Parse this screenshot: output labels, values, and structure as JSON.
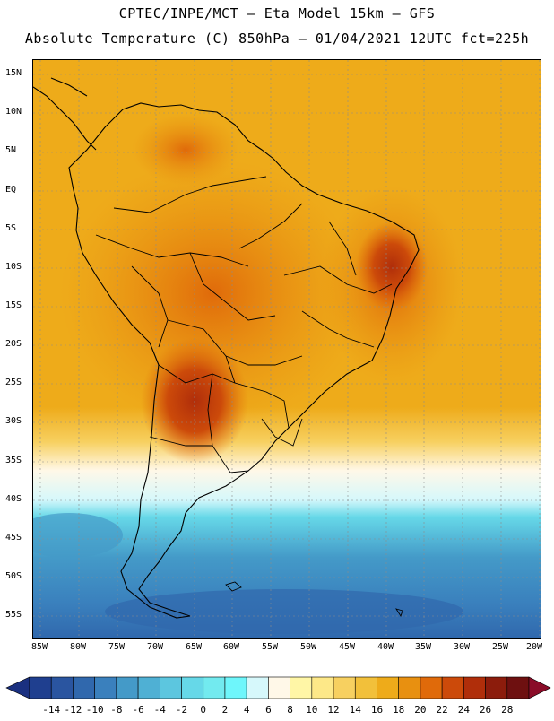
{
  "title_line1": "CPTEC/INPE/MCT –  Eta Model 15km – GFS",
  "title_line2": "Absolute Temperature (C) 850hPa – 01/04/2021 12UTC fct=225h",
  "lat_labels": [
    "15N",
    "10N",
    "5N",
    "EQ",
    "5S",
    "10S",
    "15S",
    "20S",
    "25S",
    "30S",
    "35S",
    "40S",
    "45S",
    "50S",
    "55S"
  ],
  "lon_labels": [
    "85W",
    "80W",
    "75W",
    "70W",
    "65W",
    "60W",
    "55W",
    "50W",
    "45W",
    "40W",
    "35W",
    "30W",
    "25W",
    "20W"
  ],
  "colorbar": {
    "labels": [
      "-14",
      "-12",
      "-10",
      "-8",
      "-6",
      "-4",
      "-2",
      "0",
      "2",
      "4",
      "6",
      "8",
      "10",
      "12",
      "14",
      "16",
      "18",
      "20",
      "22",
      "24",
      "26",
      "28"
    ],
    "colors": [
      "#1f3f8f",
      "#2a55a0",
      "#3068ad",
      "#3a80bd",
      "#449ac8",
      "#4fb0d4",
      "#5cc6df",
      "#66d8e8",
      "#72eaef",
      "#6ef6fb",
      "#d6f8fb",
      "#fff8e8",
      "#fff6a6",
      "#fde888",
      "#f7d060",
      "#f2c03a",
      "#eeab1a",
      "#e89010",
      "#e06a0a",
      "#cc4a0a",
      "#b02e0a",
      "#8c1c0c",
      "#6e1010"
    ],
    "under_color": "#1a3080",
    "over_color": "#8a0c28"
  }
}
